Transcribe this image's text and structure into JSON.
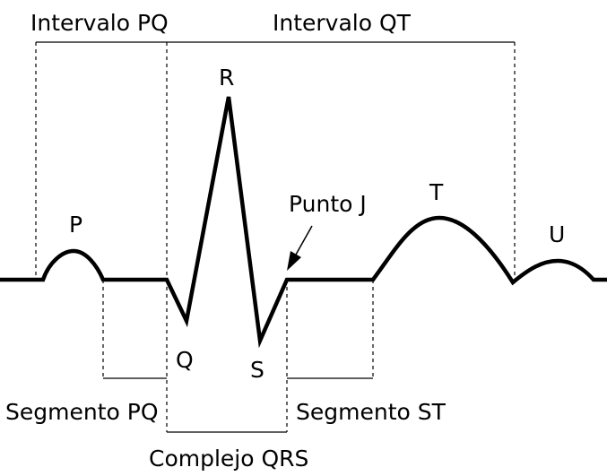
{
  "intervals": {
    "pq": "Intervalo PQ",
    "qt": "Intervalo QT"
  },
  "waves": {
    "p": "P",
    "q": "Q",
    "r": "R",
    "s": "S",
    "t": "T",
    "u": "U"
  },
  "points": {
    "j": "Punto J"
  },
  "segments": {
    "pq": "Segmento PQ",
    "st": "Segmento ST",
    "qrs": "Complejo QRS"
  }
}
